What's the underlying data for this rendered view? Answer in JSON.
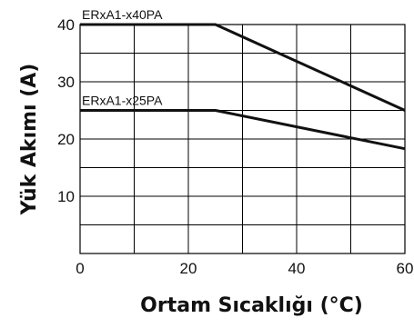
{
  "chart_data": {
    "type": "line",
    "title": "",
    "xlabel": "Ortam Sıcaklığı (°C)",
    "ylabel": "Yük Akımı (A)",
    "xlim": [
      0,
      60
    ],
    "ylim": [
      0,
      40
    ],
    "x_ticks": [
      0,
      20,
      40,
      60
    ],
    "y_ticks": [
      10,
      20,
      30,
      40
    ],
    "x_grid_step": 10,
    "y_grid_step": 5,
    "grid": true,
    "series": [
      {
        "name": "ERxA1-x40PA",
        "x": [
          0,
          25,
          60
        ],
        "y": [
          40,
          40,
          25
        ]
      },
      {
        "name": "ERxA1-x25PA",
        "x": [
          0,
          25,
          60
        ],
        "y": [
          25,
          25,
          18.3
        ]
      }
    ]
  }
}
